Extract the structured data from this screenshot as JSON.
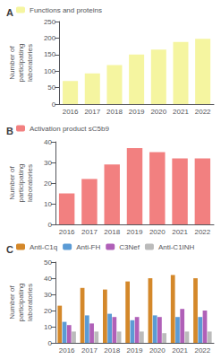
{
  "chart_data": [
    {
      "type": "bar",
      "title": "A",
      "ylabel": "Number of\nparticipating\nlaboratories",
      "categories": [
        "2016",
        "2017",
        "2018",
        "2019",
        "2020",
        "2021",
        "2022"
      ],
      "series": [
        {
          "name": "Functions and proteins",
          "color": "#F5F5A0",
          "values": [
            70,
            93,
            118,
            150,
            165,
            188,
            198
          ]
        }
      ],
      "ylim": [
        0,
        250
      ],
      "yticks": [
        0,
        50,
        100,
        150,
        200,
        250
      ],
      "grid": false,
      "legend": "upper left"
    },
    {
      "type": "bar",
      "title": "B",
      "ylabel": "Number of\nparticipating\nlaboratories",
      "categories": [
        "2016",
        "2017",
        "2018",
        "2019",
        "2020",
        "2021",
        "2022"
      ],
      "series": [
        {
          "name": "Activation product sC5b9",
          "color": "#F28080",
          "values": [
            15,
            22,
            29,
            37,
            35,
            32,
            32
          ]
        }
      ],
      "ylim": [
        0,
        40
      ],
      "yticks": [
        0,
        10,
        20,
        30,
        40
      ],
      "grid": false,
      "legend": "upper left"
    },
    {
      "type": "bar",
      "title": "C",
      "ylabel": "Number of\nparticipating\nlaboratories",
      "categories": [
        "2016",
        "2017",
        "2018",
        "2019",
        "2020",
        "2021",
        "2022"
      ],
      "series": [
        {
          "name": "Anti-C1q",
          "color": "#D4882A",
          "values": [
            23,
            34,
            33,
            38,
            40,
            42,
            40
          ]
        },
        {
          "name": "Anti-FH",
          "color": "#5B9BD5",
          "values": [
            13,
            17,
            18,
            14,
            17,
            16,
            16
          ]
        },
        {
          "name": "C3Nef",
          "color": "#B060B8",
          "values": [
            11,
            12,
            16,
            16,
            16,
            21,
            20
          ]
        },
        {
          "name": "Anti-C1INH",
          "color": "#BBBBBB",
          "values": [
            7,
            7,
            7,
            7,
            6,
            7,
            7
          ]
        }
      ],
      "ylim": [
        0,
        50
      ],
      "yticks": [
        0,
        10,
        20,
        30,
        40,
        50
      ],
      "grid": false,
      "legend": "upper left"
    }
  ]
}
